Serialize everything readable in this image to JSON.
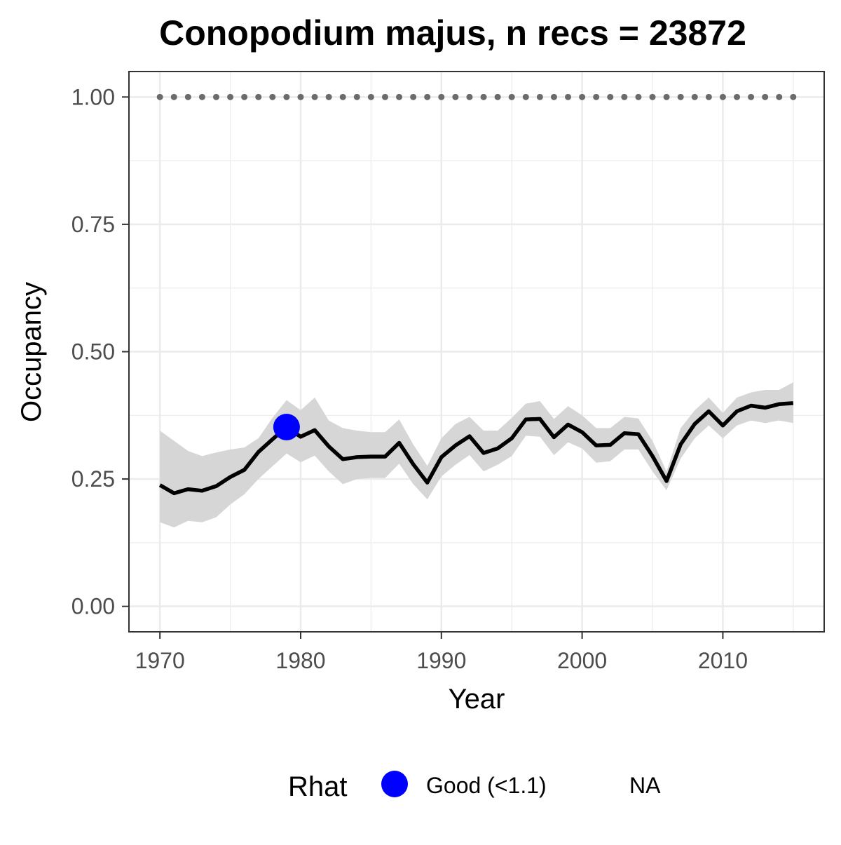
{
  "chart_data": {
    "type": "line",
    "title": "Conopodium majus, n recs = 23872",
    "xlabel": "Year",
    "ylabel": "Occupancy",
    "xlim": [
      1967.8,
      2017.2
    ],
    "ylim": [
      -0.05,
      1.05
    ],
    "x_ticks": [
      1970,
      1980,
      1990,
      2000,
      2010
    ],
    "x_tick_labels": [
      "1970",
      "1980",
      "1990",
      "2000",
      "2010"
    ],
    "y_ticks": [
      0,
      0.25,
      0.5,
      0.75,
      1.0
    ],
    "y_tick_labels": [
      "0.00",
      "0.25",
      "0.50",
      "0.75",
      "1.00"
    ],
    "grid": true,
    "legend": {
      "position": "bottom",
      "title": "Rhat",
      "entries": [
        {
          "label": "Good (<1.1)",
          "color": "#0000ff"
        },
        {
          "label": "NA",
          "color": null
        }
      ]
    },
    "colors": {
      "line": "#000000",
      "ribbon": "#d6d6d6",
      "reference": "#6b6b6b",
      "good": "#0000ff",
      "grid": "#ebebeb",
      "border": "#333333",
      "tick_text": "#4d4d4d"
    },
    "x": [
      1970,
      1971,
      1972,
      1973,
      1974,
      1975,
      1976,
      1977,
      1978,
      1979,
      1980,
      1981,
      1982,
      1983,
      1984,
      1985,
      1986,
      1987,
      1988,
      1989,
      1990,
      1991,
      1992,
      1993,
      1994,
      1995,
      1996,
      1997,
      1998,
      1999,
      2000,
      2001,
      2002,
      2003,
      2004,
      2005,
      2006,
      2007,
      2008,
      2009,
      2010,
      2011,
      2012,
      2013,
      2014,
      2015
    ],
    "series": [
      {
        "values": [
          0.238,
          0.222,
          0.23,
          0.227,
          0.236,
          0.254,
          0.268,
          0.303,
          0.328,
          0.352,
          0.333,
          0.346,
          0.314,
          0.289,
          0.293,
          0.294,
          0.294,
          0.321,
          0.279,
          0.243,
          0.293,
          0.316,
          0.334,
          0.301,
          0.31,
          0.33,
          0.367,
          0.368,
          0.332,
          0.357,
          0.342,
          0.316,
          0.317,
          0.34,
          0.338,
          0.295,
          0.246,
          0.318,
          0.358,
          0.383,
          0.355,
          0.383,
          0.394,
          0.39,
          0.397,
          0.399
        ],
        "lower": [
          0.165,
          0.155,
          0.168,
          0.165,
          0.175,
          0.2,
          0.22,
          0.25,
          0.275,
          0.3,
          0.283,
          0.296,
          0.265,
          0.24,
          0.25,
          0.252,
          0.252,
          0.28,
          0.24,
          0.21,
          0.255,
          0.278,
          0.297,
          0.265,
          0.278,
          0.295,
          0.335,
          0.333,
          0.297,
          0.322,
          0.31,
          0.282,
          0.285,
          0.308,
          0.308,
          0.265,
          0.228,
          0.29,
          0.33,
          0.355,
          0.33,
          0.355,
          0.365,
          0.36,
          0.365,
          0.36
        ],
        "upper": [
          0.345,
          0.325,
          0.305,
          0.295,
          0.302,
          0.308,
          0.312,
          0.33,
          0.37,
          0.405,
          0.385,
          0.41,
          0.365,
          0.35,
          0.345,
          0.342,
          0.342,
          0.367,
          0.318,
          0.276,
          0.33,
          0.358,
          0.372,
          0.345,
          0.345,
          0.37,
          0.398,
          0.403,
          0.368,
          0.393,
          0.375,
          0.35,
          0.35,
          0.372,
          0.369,
          0.325,
          0.265,
          0.35,
          0.385,
          0.41,
          0.38,
          0.41,
          0.42,
          0.425,
          0.425,
          0.44
        ]
      }
    ],
    "reference_line": {
      "y": 1.0,
      "style": "dotted"
    },
    "highlight_points": [
      {
        "x": 1979,
        "y": 0.352,
        "rhat": "Good (<1.1)"
      }
    ]
  }
}
